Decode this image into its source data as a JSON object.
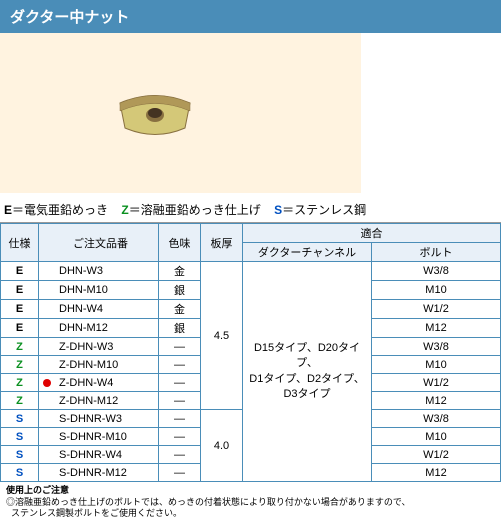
{
  "title": "ダクター中ナット",
  "legend": {
    "e_key": "E",
    "e_text": "＝電気亜鉛めっき",
    "z_key": "Z",
    "z_text": "＝溶融亜鉛めっき仕上げ",
    "s_key": "S",
    "s_text": "＝ステンレス鋼"
  },
  "dimensions": {
    "width": "34",
    "height": "32"
  },
  "table": {
    "headers": {
      "spec": "仕様",
      "part": "ご注文品番",
      "color": "色味",
      "thick": "板厚",
      "compat": "適合",
      "channel": "ダクターチャンネル",
      "bolt": "ボルト"
    },
    "thick_e_z": "4.5",
    "thick_s": "4.0",
    "channel_line1": "D15タイプ、D20タイプ、",
    "channel_line2": "D1タイプ、D2タイプ、",
    "channel_line3": "D3タイプ",
    "rows": [
      {
        "spec": "E",
        "specClass": "spec-e",
        "part": "DHN-W3",
        "color": "金",
        "bolt": "W3/8",
        "marked": false
      },
      {
        "spec": "E",
        "specClass": "spec-e",
        "part": "DHN-M10",
        "color": "銀",
        "bolt": "M10",
        "marked": false
      },
      {
        "spec": "E",
        "specClass": "spec-e",
        "part": "DHN-W4",
        "color": "金",
        "bolt": "W1/2",
        "marked": false
      },
      {
        "spec": "E",
        "specClass": "spec-e",
        "part": "DHN-M12",
        "color": "銀",
        "bolt": "M12",
        "marked": false
      },
      {
        "spec": "Z",
        "specClass": "spec-z",
        "part": "Z-DHN-W3",
        "color": "―",
        "bolt": "W3/8",
        "marked": false
      },
      {
        "spec": "Z",
        "specClass": "spec-z",
        "part": "Z-DHN-M10",
        "color": "―",
        "bolt": "M10",
        "marked": false
      },
      {
        "spec": "Z",
        "specClass": "spec-z",
        "part": "Z-DHN-W4",
        "color": "―",
        "bolt": "W1/2",
        "marked": true
      },
      {
        "spec": "Z",
        "specClass": "spec-z",
        "part": "Z-DHN-M12",
        "color": "―",
        "bolt": "M12",
        "marked": false
      },
      {
        "spec": "S",
        "specClass": "spec-s",
        "part": "S-DHNR-W3",
        "color": "―",
        "bolt": "W3/8",
        "marked": false
      },
      {
        "spec": "S",
        "specClass": "spec-s",
        "part": "S-DHNR-M10",
        "color": "―",
        "bolt": "M10",
        "marked": false
      },
      {
        "spec": "S",
        "specClass": "spec-s",
        "part": "S-DHNR-W4",
        "color": "―",
        "bolt": "W1/2",
        "marked": false
      },
      {
        "spec": "S",
        "specClass": "spec-s",
        "part": "S-DHNR-M12",
        "color": "―",
        "bolt": "M12",
        "marked": false
      }
    ]
  },
  "notes": {
    "title": "使用上のご注意",
    "line1": "◎溶融亜鉛めっき仕上げのボルトでは、めっきの付着状態により取り付かない場合がありますので、",
    "line2": "ステンレス鋼製ボルトをご使用ください。"
  },
  "colors": {
    "product_top": "#d4c878",
    "product_side": "#b09858",
    "product_shadow": "#887040",
    "nut_brass": "#c8b868"
  }
}
